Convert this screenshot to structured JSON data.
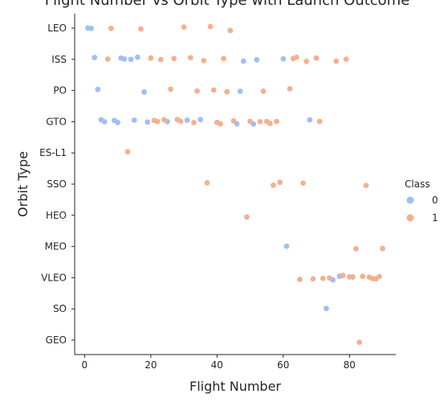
{
  "chart_data": {
    "type": "scatter",
    "title": "Flight Number vs Orbit Type with Launch Outcome",
    "xlabel": "Flight Number",
    "ylabel": "Orbit Type",
    "xlim": [
      -3,
      94
    ],
    "xticks": [
      0,
      20,
      40,
      60,
      80
    ],
    "categories": [
      "LEO",
      "ISS",
      "PO",
      "GTO",
      "ES-L1",
      "SSO",
      "HEO",
      "MEO",
      "VLEO",
      "SO",
      "GEO"
    ],
    "legend": {
      "title": "Class",
      "placement": "right"
    },
    "series": [
      {
        "name": "0",
        "color": "#a1bef6",
        "points": [
          {
            "x": 1,
            "y": "LEO"
          },
          {
            "x": 2,
            "y": "LEO"
          },
          {
            "x": 3,
            "y": "ISS"
          },
          {
            "x": 11,
            "y": "ISS"
          },
          {
            "x": 12,
            "y": "ISS"
          },
          {
            "x": 14,
            "y": "ISS"
          },
          {
            "x": 16,
            "y": "ISS"
          },
          {
            "x": 48,
            "y": "ISS"
          },
          {
            "x": 52,
            "y": "ISS"
          },
          {
            "x": 60,
            "y": "ISS"
          },
          {
            "x": 4,
            "y": "PO"
          },
          {
            "x": 18,
            "y": "PO"
          },
          {
            "x": 47,
            "y": "PO"
          },
          {
            "x": 5,
            "y": "GTO"
          },
          {
            "x": 6,
            "y": "GTO"
          },
          {
            "x": 9,
            "y": "GTO"
          },
          {
            "x": 10,
            "y": "GTO"
          },
          {
            "x": 15,
            "y": "GTO"
          },
          {
            "x": 19,
            "y": "GTO"
          },
          {
            "x": 25,
            "y": "GTO"
          },
          {
            "x": 31,
            "y": "GTO"
          },
          {
            "x": 35,
            "y": "GTO"
          },
          {
            "x": 46,
            "y": "GTO"
          },
          {
            "x": 51,
            "y": "GTO"
          },
          {
            "x": 68,
            "y": "GTO"
          },
          {
            "x": 61,
            "y": "MEO"
          },
          {
            "x": 75,
            "y": "VLEO"
          },
          {
            "x": 77,
            "y": "VLEO"
          },
          {
            "x": 73,
            "y": "SO"
          }
        ]
      },
      {
        "name": "1",
        "color": "#f4b08f",
        "points": [
          {
            "x": 8,
            "y": "LEO"
          },
          {
            "x": 17,
            "y": "LEO"
          },
          {
            "x": 30,
            "y": "LEO"
          },
          {
            "x": 38,
            "y": "LEO"
          },
          {
            "x": 44,
            "y": "LEO"
          },
          {
            "x": 7,
            "y": "ISS"
          },
          {
            "x": 20,
            "y": "ISS"
          },
          {
            "x": 23,
            "y": "ISS"
          },
          {
            "x": 27,
            "y": "ISS"
          },
          {
            "x": 32,
            "y": "ISS"
          },
          {
            "x": 36,
            "y": "ISS"
          },
          {
            "x": 42,
            "y": "ISS"
          },
          {
            "x": 63,
            "y": "ISS"
          },
          {
            "x": 64,
            "y": "ISS"
          },
          {
            "x": 67,
            "y": "ISS"
          },
          {
            "x": 70,
            "y": "ISS"
          },
          {
            "x": 76,
            "y": "ISS"
          },
          {
            "x": 79,
            "y": "ISS"
          },
          {
            "x": 26,
            "y": "PO"
          },
          {
            "x": 34,
            "y": "PO"
          },
          {
            "x": 39,
            "y": "PO"
          },
          {
            "x": 43,
            "y": "PO"
          },
          {
            "x": 54,
            "y": "PO"
          },
          {
            "x": 62,
            "y": "PO"
          },
          {
            "x": 21,
            "y": "GTO"
          },
          {
            "x": 22,
            "y": "GTO"
          },
          {
            "x": 24,
            "y": "GTO"
          },
          {
            "x": 28,
            "y": "GTO"
          },
          {
            "x": 29,
            "y": "GTO"
          },
          {
            "x": 33,
            "y": "GTO"
          },
          {
            "x": 40,
            "y": "GTO"
          },
          {
            "x": 41,
            "y": "GTO"
          },
          {
            "x": 45,
            "y": "GTO"
          },
          {
            "x": 50,
            "y": "GTO"
          },
          {
            "x": 53,
            "y": "GTO"
          },
          {
            "x": 55,
            "y": "GTO"
          },
          {
            "x": 56,
            "y": "GTO"
          },
          {
            "x": 58,
            "y": "GTO"
          },
          {
            "x": 71,
            "y": "GTO"
          },
          {
            "x": 13,
            "y": "ES-L1"
          },
          {
            "x": 37,
            "y": "SSO"
          },
          {
            "x": 57,
            "y": "SSO"
          },
          {
            "x": 59,
            "y": "SSO"
          },
          {
            "x": 66,
            "y": "SSO"
          },
          {
            "x": 85,
            "y": "SSO"
          },
          {
            "x": 49,
            "y": "HEO"
          },
          {
            "x": 82,
            "y": "MEO"
          },
          {
            "x": 90,
            "y": "MEO"
          },
          {
            "x": 65,
            "y": "VLEO"
          },
          {
            "x": 69,
            "y": "VLEO"
          },
          {
            "x": 72,
            "y": "VLEO"
          },
          {
            "x": 74,
            "y": "VLEO"
          },
          {
            "x": 78,
            "y": "VLEO"
          },
          {
            "x": 80,
            "y": "VLEO"
          },
          {
            "x": 81,
            "y": "VLEO"
          },
          {
            "x": 84,
            "y": "VLEO"
          },
          {
            "x": 86,
            "y": "VLEO"
          },
          {
            "x": 87,
            "y": "VLEO"
          },
          {
            "x": 88,
            "y": "VLEO"
          },
          {
            "x": 89,
            "y": "VLEO"
          },
          {
            "x": 83,
            "y": "GEO"
          }
        ]
      }
    ]
  }
}
